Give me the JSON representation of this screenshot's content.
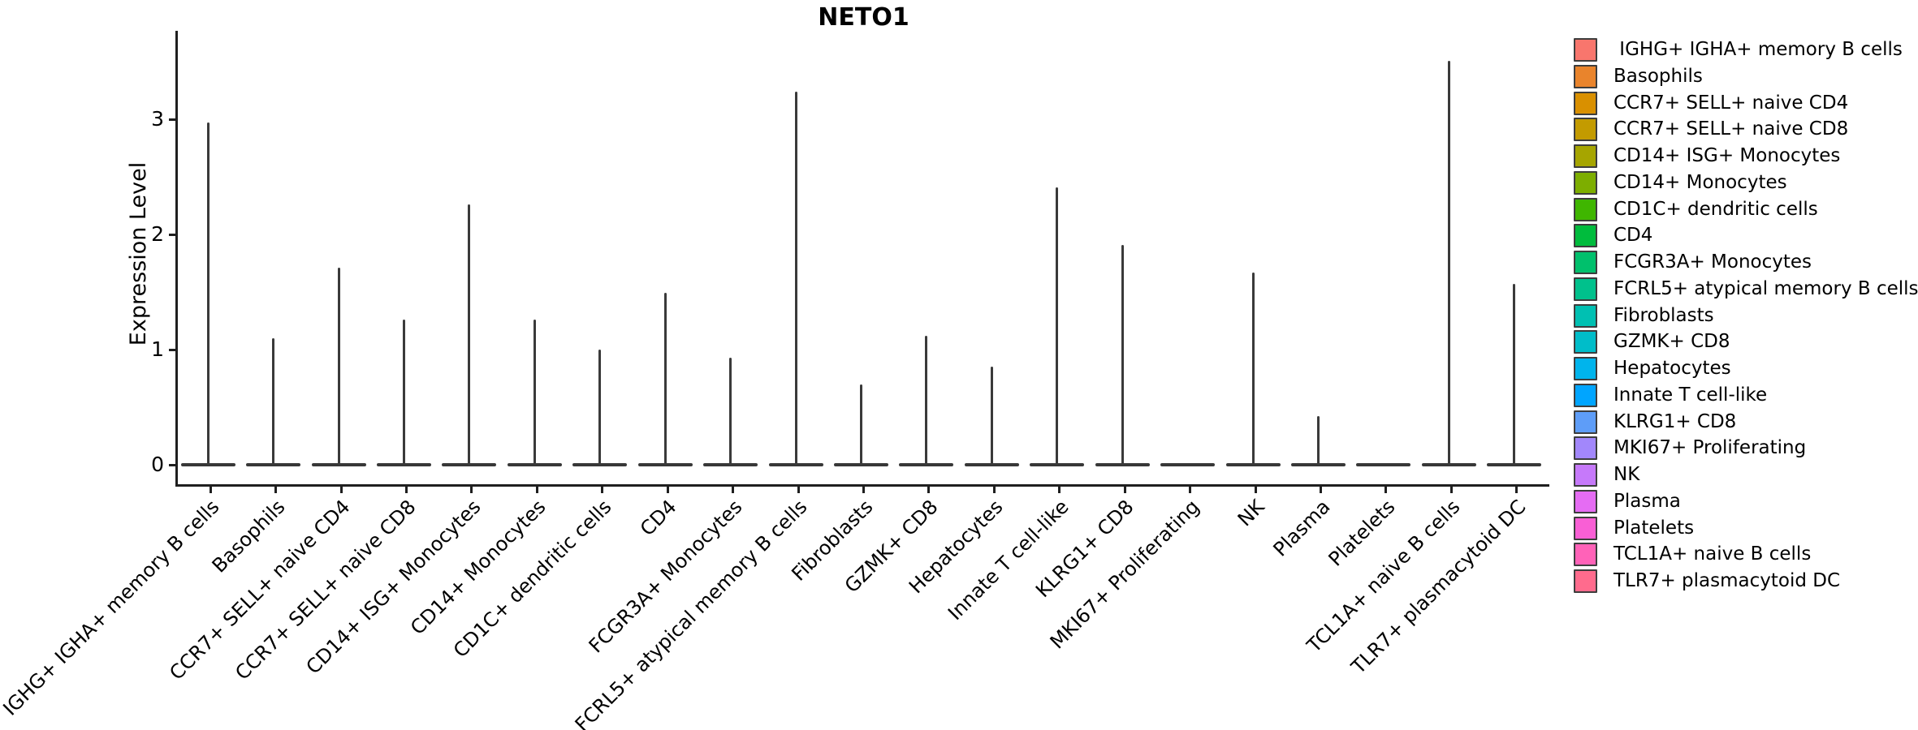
{
  "title": "NETO1",
  "y_axis": {
    "label": "Expression Level",
    "tick_labels": [
      "0",
      "1",
      "2",
      "3"
    ],
    "tick_values": [
      0,
      1,
      2,
      3
    ]
  },
  "x_axis": {
    "tick_label_rotation_deg": 45
  },
  "legend": {
    "position": "right"
  },
  "colors": {
    "background": "#ffffff",
    "axis_line": "#1f1f1f",
    "violin_stroke": "#3a3a3a",
    "text": "#000000",
    "swatch_border": "#3d3d3d"
  },
  "chart_data": {
    "type": "violin",
    "title": "NETO1",
    "xlabel": "",
    "ylabel": "Expression Level",
    "ylim": [
      -0.19,
      3.77
    ],
    "yticks": [
      0,
      1,
      2,
      3
    ],
    "grid": false,
    "legend_position": "right",
    "baseline_value": 0,
    "style_note": "Seurat-style violin plot; each distribution is concentrated at 0 (wide flat base bar) with a thin spike rising to the maximum expression value",
    "violins": [
      {
        "label": "IGHG+ IGHA+ memory B cells",
        "legend_label": " IGHG+ IGHA+ memory B cells",
        "color": "#F8766D",
        "max_expression": 2.97
      },
      {
        "label": "Basophils",
        "legend_label": "Basophils",
        "color": "#E9842C",
        "max_expression": 1.1
      },
      {
        "label": "CCR7+ SELL+ naive CD4",
        "legend_label": "CCR7+ SELL+ naive CD4",
        "color": "#D99000",
        "max_expression": 1.71
      },
      {
        "label": "CCR7+ SELL+ naive CD8",
        "legend_label": "CCR7+ SELL+ naive CD8",
        "color": "#C39B00",
        "max_expression": 1.26
      },
      {
        "label": "CD14+ ISG+ Monocytes",
        "legend_label": "CD14+ ISG+ Monocytes",
        "color": "#A6A500",
        "max_expression": 2.26
      },
      {
        "label": "CD14+ Monocytes",
        "legend_label": "CD14+ Monocytes",
        "color": "#7DAE00",
        "max_expression": 1.26
      },
      {
        "label": "CD1C+ dendritic cells",
        "legend_label": "CD1C+ dendritic cells",
        "color": "#3FB600",
        "max_expression": 1.0
      },
      {
        "label": "CD4",
        "legend_label": "CD4",
        "color": "#00BC3D",
        "max_expression": 1.49
      },
      {
        "label": "FCGR3A+ Monocytes",
        "legend_label": "FCGR3A+ Monocytes",
        "color": "#00C06C",
        "max_expression": 0.93
      },
      {
        "label": "FCRL5+ atypical memory B cells",
        "legend_label": "FCRL5+ atypical memory B cells",
        "color": "#00C18C",
        "max_expression": 3.24
      },
      {
        "label": "Fibroblasts",
        "legend_label": "Fibroblasts",
        "color": "#00C0B2",
        "max_expression": 0.7
      },
      {
        "label": "GZMK+ CD8",
        "legend_label": "GZMK+ CD8",
        "color": "#00BDC9",
        "max_expression": 1.12
      },
      {
        "label": "Hepatocytes",
        "legend_label": "Hepatocytes",
        "color": "#00B4EC",
        "max_expression": 0.85
      },
      {
        "label": "Innate T cell-like",
        "legend_label": "Innate T cell-like",
        "color": "#00A5FF",
        "max_expression": 2.41
      },
      {
        "label": "KLRG1+ CD8",
        "legend_label": "KLRG1+ CD8",
        "color": "#5E9DF8",
        "max_expression": 1.91
      },
      {
        "label": "MKI67+ Proliferating",
        "legend_label": "MKI67+ Proliferating",
        "color": "#A287FB",
        "max_expression": 0.0
      },
      {
        "label": "NK",
        "legend_label": "NK",
        "color": "#C679FA",
        "max_expression": 1.67
      },
      {
        "label": "Plasma",
        "legend_label": "Plasma",
        "color": "#E56CF3",
        "max_expression": 0.42
      },
      {
        "label": "Platelets",
        "legend_label": "Platelets",
        "color": "#F95FD5",
        "max_expression": 0.0
      },
      {
        "label": "TCL1A+ naive B cells",
        "legend_label": "TCL1A+ naive B cells",
        "color": "#FF62B8",
        "max_expression": 3.51
      },
      {
        "label": "TLR7+ plasmacytoid DC",
        "legend_label": "TLR7+ plasmacytoid DC",
        "color": "#FF6B8D",
        "max_expression": 1.57
      }
    ]
  }
}
